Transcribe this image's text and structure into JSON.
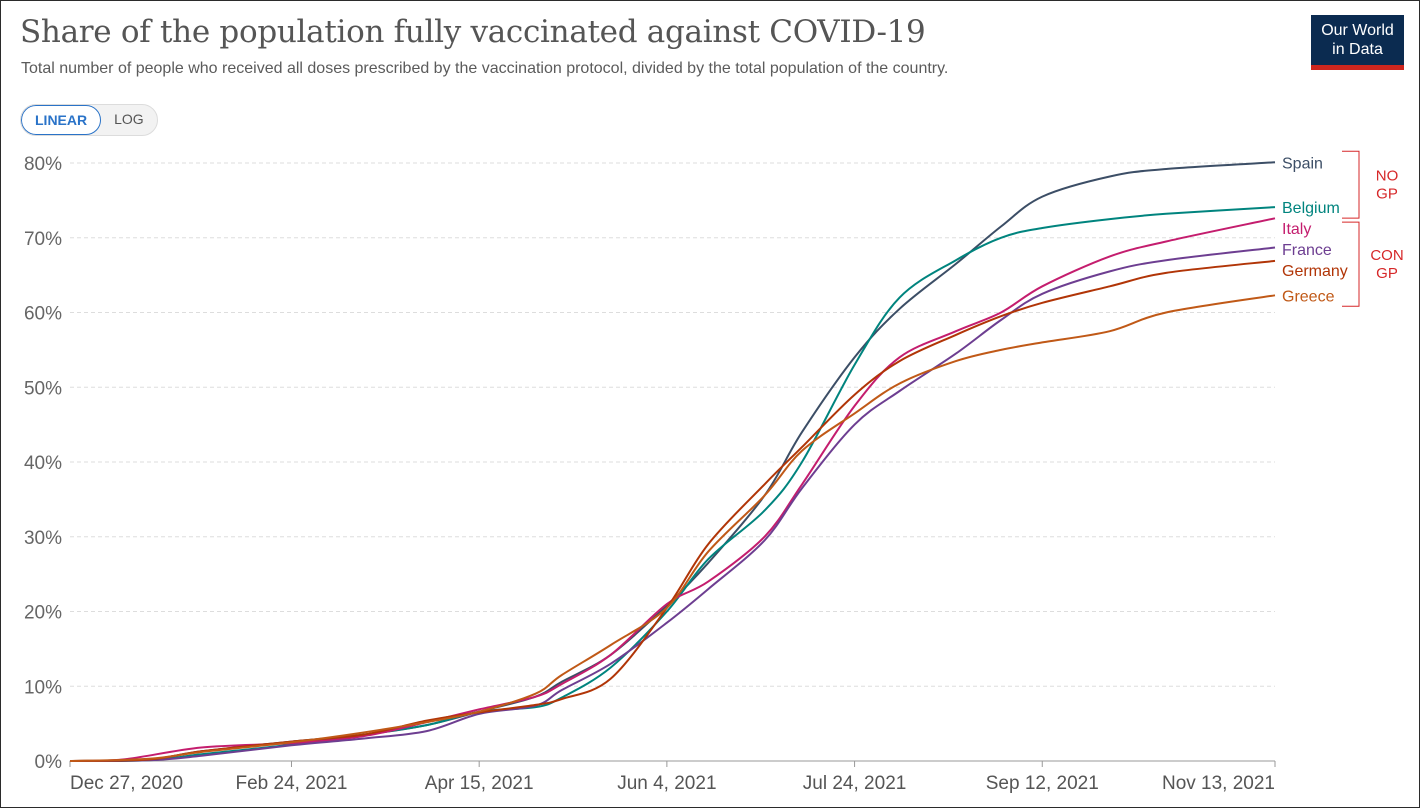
{
  "header": {
    "title": "Share of the population fully vaccinated against COVID-19",
    "subtitle": "Total number of people who received all doses prescribed by the vaccination protocol, divided by the total population of the country.",
    "logo_line1": "Our World",
    "logo_line2": "in Data"
  },
  "controls": {
    "linear_label": "LINEAR",
    "log_label": "LOG",
    "selected": "LINEAR"
  },
  "colors": {
    "logo_bg": "#0b2b50",
    "logo_bar": "#ce261e",
    "annotation": "#d62728",
    "active_toggle": "#2a73c8"
  },
  "chart_data": {
    "type": "line",
    "title": "Share of the population fully vaccinated against COVID-19",
    "xlabel": "",
    "ylabel": "",
    "ylim": [
      0,
      80
    ],
    "y_ticks": [
      0,
      10,
      20,
      30,
      40,
      50,
      60,
      70,
      80
    ],
    "y_unit": "%",
    "x_range": [
      "2020-12-27",
      "2021-11-13"
    ],
    "x_ticks": [
      {
        "date": "2020-12-27",
        "label": "Dec 27, 2020"
      },
      {
        "date": "2021-02-24",
        "label": "Feb 24, 2021"
      },
      {
        "date": "2021-04-15",
        "label": "Apr 15, 2021"
      },
      {
        "date": "2021-06-04",
        "label": "Jun 4, 2021"
      },
      {
        "date": "2021-07-24",
        "label": "Jul 24, 2021"
      },
      {
        "date": "2021-09-12",
        "label": "Sep 12, 2021"
      },
      {
        "date": "2021-11-13",
        "label": "Nov 13, 2021"
      }
    ],
    "grid": true,
    "series": [
      {
        "name": "Spain",
        "color": "#3c4e66",
        "points": [
          [
            "2020-12-27",
            0
          ],
          [
            "2021-01-17",
            0.2
          ],
          [
            "2021-01-31",
            1.3
          ],
          [
            "2021-02-24",
            2.6
          ],
          [
            "2021-03-15",
            3.5
          ],
          [
            "2021-04-01",
            4.8
          ],
          [
            "2021-04-15",
            6.6
          ],
          [
            "2021-04-30",
            8.6
          ],
          [
            "2021-05-07",
            10.6
          ],
          [
            "2021-05-20",
            14.2
          ],
          [
            "2021-06-04",
            20.8
          ],
          [
            "2021-06-15",
            26.5
          ],
          [
            "2021-06-30",
            35.5
          ],
          [
            "2021-07-10",
            44.0
          ],
          [
            "2021-07-24",
            54.0
          ],
          [
            "2021-08-05",
            60.5
          ],
          [
            "2021-08-20",
            66.5
          ],
          [
            "2021-09-01",
            71.5
          ],
          [
            "2021-09-12",
            75.5
          ],
          [
            "2021-09-30",
            78.2
          ],
          [
            "2021-10-15",
            79.2
          ],
          [
            "2021-11-13",
            80.1
          ]
        ]
      },
      {
        "name": "Belgium",
        "color": "#00847e",
        "points": [
          [
            "2020-12-27",
            0
          ],
          [
            "2021-01-17",
            0.1
          ],
          [
            "2021-01-31",
            0.9
          ],
          [
            "2021-02-24",
            2.2
          ],
          [
            "2021-03-15",
            3.5
          ],
          [
            "2021-04-01",
            4.8
          ],
          [
            "2021-04-15",
            6.6
          ],
          [
            "2021-04-30",
            7.2
          ],
          [
            "2021-05-07",
            8.5
          ],
          [
            "2021-05-20",
            12.5
          ],
          [
            "2021-06-04",
            20.0
          ],
          [
            "2021-06-15",
            27.0
          ],
          [
            "2021-06-30",
            33.5
          ],
          [
            "2021-07-10",
            40.0
          ],
          [
            "2021-07-24",
            53.0
          ],
          [
            "2021-08-05",
            62.0
          ],
          [
            "2021-08-20",
            67.0
          ],
          [
            "2021-09-01",
            70.0
          ],
          [
            "2021-09-12",
            71.3
          ],
          [
            "2021-09-30",
            72.5
          ],
          [
            "2021-10-15",
            73.2
          ],
          [
            "2021-11-13",
            74.1
          ]
        ]
      },
      {
        "name": "Italy",
        "color": "#c41d6e",
        "points": [
          [
            "2020-12-27",
            0
          ],
          [
            "2021-01-10",
            0.2
          ],
          [
            "2021-01-31",
            1.8
          ],
          [
            "2021-02-24",
            2.4
          ],
          [
            "2021-03-15",
            3.3
          ],
          [
            "2021-04-01",
            5.2
          ],
          [
            "2021-04-15",
            6.9
          ],
          [
            "2021-04-30",
            8.6
          ],
          [
            "2021-05-07",
            10.3
          ],
          [
            "2021-05-20",
            14.2
          ],
          [
            "2021-06-04",
            21.0
          ],
          [
            "2021-06-15",
            24.0
          ],
          [
            "2021-06-30",
            30.0
          ],
          [
            "2021-07-10",
            37.0
          ],
          [
            "2021-07-24",
            47.5
          ],
          [
            "2021-08-05",
            54.0
          ],
          [
            "2021-08-20",
            57.5
          ],
          [
            "2021-09-01",
            60.0
          ],
          [
            "2021-09-12",
            63.5
          ],
          [
            "2021-09-30",
            67.5
          ],
          [
            "2021-10-15",
            69.5
          ],
          [
            "2021-11-13",
            72.6
          ]
        ]
      },
      {
        "name": "France",
        "color": "#6d3e91",
        "points": [
          [
            "2020-12-27",
            0
          ],
          [
            "2021-01-17",
            0.1
          ],
          [
            "2021-01-31",
            0.7
          ],
          [
            "2021-02-24",
            2.1
          ],
          [
            "2021-03-15",
            3.0
          ],
          [
            "2021-04-01",
            4.0
          ],
          [
            "2021-04-15",
            6.3
          ],
          [
            "2021-04-30",
            7.4
          ],
          [
            "2021-05-07",
            9.5
          ],
          [
            "2021-05-20",
            13.0
          ],
          [
            "2021-06-04",
            18.5
          ],
          [
            "2021-06-15",
            23.0
          ],
          [
            "2021-06-30",
            29.5
          ],
          [
            "2021-07-10",
            36.5
          ],
          [
            "2021-07-24",
            45.0
          ],
          [
            "2021-08-05",
            49.5
          ],
          [
            "2021-08-20",
            54.5
          ],
          [
            "2021-09-01",
            59.0
          ],
          [
            "2021-09-12",
            62.5
          ],
          [
            "2021-09-30",
            65.5
          ],
          [
            "2021-10-15",
            67.0
          ],
          [
            "2021-11-13",
            68.7
          ]
        ]
      },
      {
        "name": "Germany",
        "color": "#b13507",
        "points": [
          [
            "2020-12-27",
            0
          ],
          [
            "2021-01-17",
            0.2
          ],
          [
            "2021-01-31",
            1.3
          ],
          [
            "2021-02-24",
            2.6
          ],
          [
            "2021-03-15",
            3.5
          ],
          [
            "2021-04-01",
            5.4
          ],
          [
            "2021-04-15",
            6.5
          ],
          [
            "2021-04-30",
            7.5
          ],
          [
            "2021-05-07",
            8.3
          ],
          [
            "2021-05-20",
            11.0
          ],
          [
            "2021-06-04",
            20.5
          ],
          [
            "2021-06-15",
            29.0
          ],
          [
            "2021-06-30",
            37.0
          ],
          [
            "2021-07-10",
            42.0
          ],
          [
            "2021-07-24",
            49.0
          ],
          [
            "2021-08-05",
            53.5
          ],
          [
            "2021-08-20",
            57.0
          ],
          [
            "2021-09-01",
            59.5
          ],
          [
            "2021-09-12",
            61.3
          ],
          [
            "2021-09-30",
            63.5
          ],
          [
            "2021-10-15",
            65.3
          ],
          [
            "2021-11-13",
            66.9
          ]
        ]
      },
      {
        "name": "Greece",
        "color": "#c05917",
        "points": [
          [
            "2020-12-27",
            0
          ],
          [
            "2021-01-17",
            0.3
          ],
          [
            "2021-01-31",
            1.2
          ],
          [
            "2021-02-24",
            2.5
          ],
          [
            "2021-03-15",
            3.8
          ],
          [
            "2021-04-01",
            5.2
          ],
          [
            "2021-04-15",
            6.6
          ],
          [
            "2021-04-30",
            9.0
          ],
          [
            "2021-05-07",
            11.5
          ],
          [
            "2021-05-20",
            15.5
          ],
          [
            "2021-06-04",
            20.5
          ],
          [
            "2021-06-15",
            28.0
          ],
          [
            "2021-06-30",
            35.5
          ],
          [
            "2021-07-10",
            41.5
          ],
          [
            "2021-07-24",
            46.5
          ],
          [
            "2021-08-05",
            50.5
          ],
          [
            "2021-08-20",
            53.5
          ],
          [
            "2021-09-01",
            55.0
          ],
          [
            "2021-09-12",
            56.0
          ],
          [
            "2021-09-30",
            57.5
          ],
          [
            "2021-10-15",
            60.0
          ],
          [
            "2021-11-13",
            62.3
          ]
        ]
      }
    ],
    "annotations": [
      {
        "lines": [
          "NO",
          "GP"
        ],
        "groups": [
          "Spain",
          "Belgium"
        ]
      },
      {
        "lines": [
          "CON",
          "GP"
        ],
        "groups": [
          "Italy",
          "France",
          "Germany",
          "Greece"
        ]
      }
    ]
  }
}
